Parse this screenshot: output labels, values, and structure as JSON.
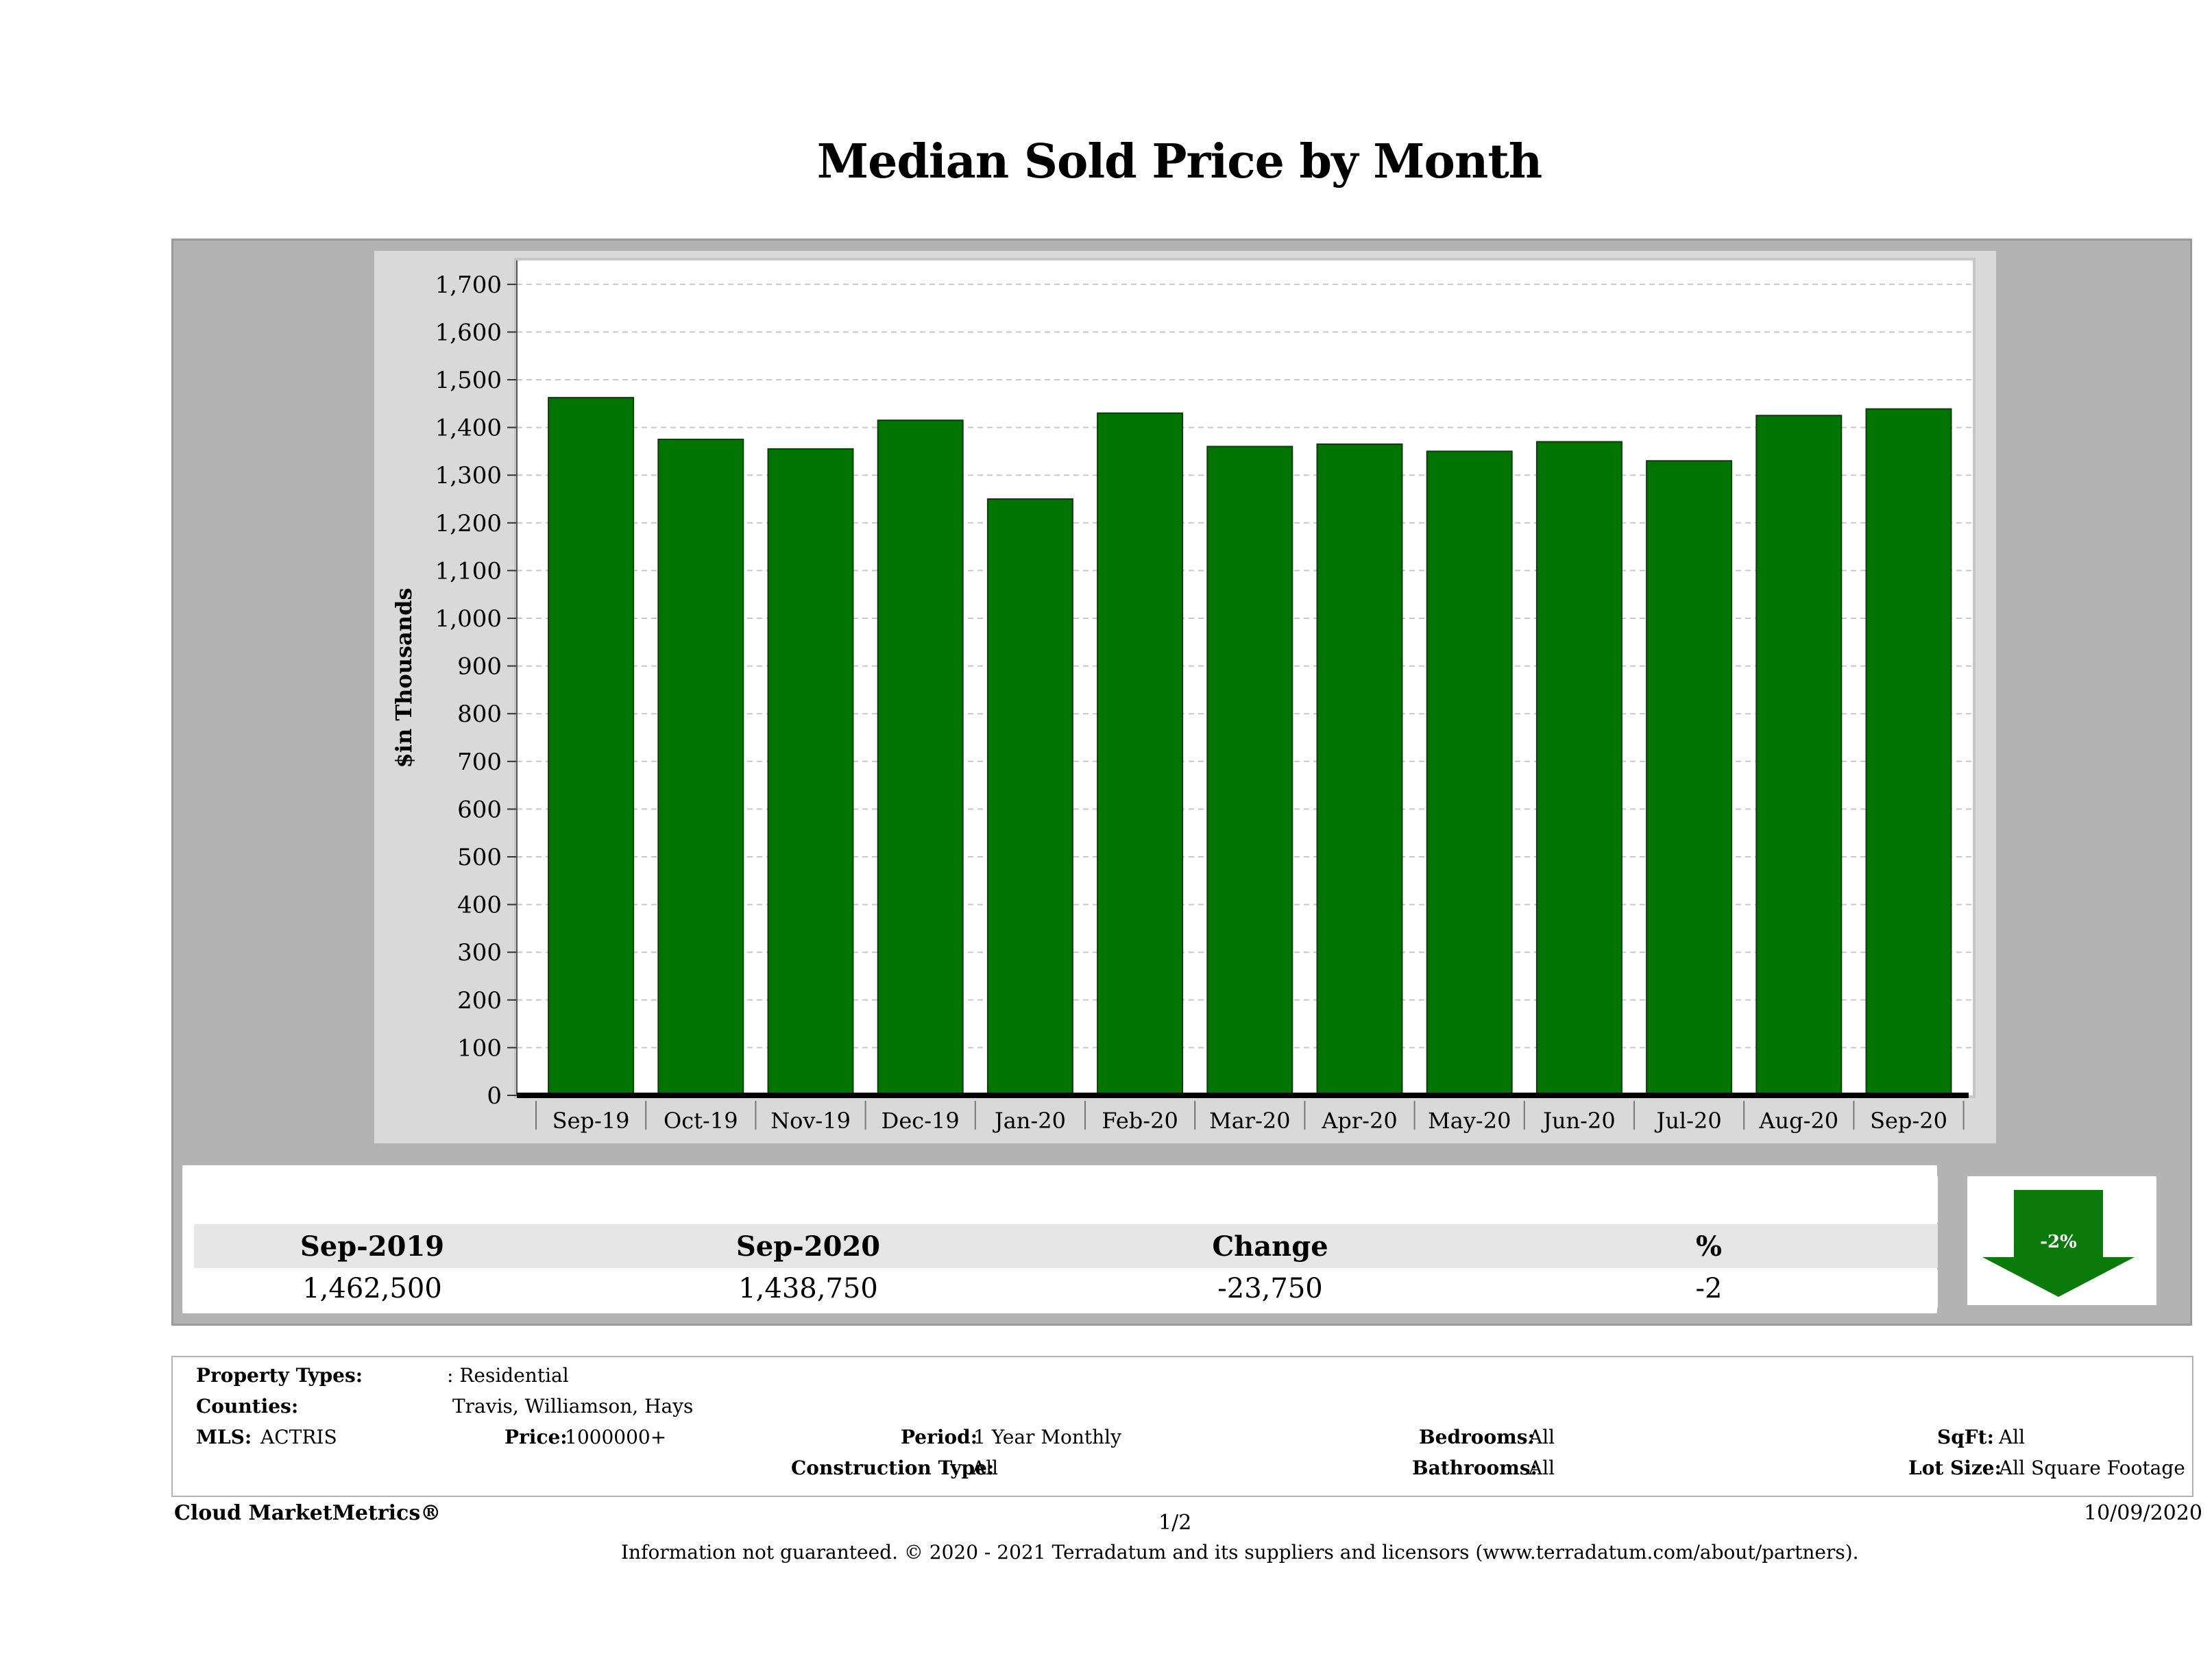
{
  "chart_data": {
    "type": "bar",
    "title": "Median Sold Price by Month",
    "ylabel": "$in Thousands",
    "xlabel": "",
    "categories": [
      "Sep-19",
      "Oct-19",
      "Nov-19",
      "Dec-19",
      "Jan-20",
      "Feb-20",
      "Mar-20",
      "Apr-20",
      "May-20",
      "Jun-20",
      "Jul-20",
      "Aug-20",
      "Sep-20"
    ],
    "values": [
      1462.5,
      1375,
      1355,
      1415,
      1250,
      1430,
      1360,
      1365,
      1350,
      1370,
      1330,
      1425,
      1438.75
    ],
    "ylim": [
      0,
      1750
    ],
    "yticks": [
      0,
      100,
      200,
      300,
      400,
      500,
      600,
      700,
      800,
      900,
      1000,
      1100,
      1200,
      1300,
      1400,
      1500,
      1600,
      1700
    ],
    "ytick_labels": [
      "0",
      "100",
      "200",
      "300",
      "400",
      "500",
      "600",
      "700",
      "800",
      "900",
      "1,000",
      "1,100",
      "1,200",
      "1,300",
      "1,400",
      "1,500",
      "1,600",
      "1,700"
    ],
    "grid": true,
    "bar_color": "#007400"
  },
  "summary": {
    "headers": [
      "Sep-2019",
      "Sep-2020",
      "Change",
      "%"
    ],
    "values": [
      "1,462,500",
      "1,438,750",
      "-23,750",
      "-2"
    ],
    "arrow_label": "-2%",
    "arrow_direction": "down",
    "arrow_color": "#0a7a0a"
  },
  "criteria": {
    "property_types_label": "Property Types:",
    "property_types_value": ": Residential",
    "counties_label": "Counties:",
    "counties_value": "Travis, Williamson, Hays",
    "mls_label": "MLS:",
    "mls_value": "ACTRIS",
    "price_label": "Price:",
    "price_value": "1000000+",
    "period_label": "Period:",
    "period_value": "1 Year Monthly",
    "construction_label": "Construction Type:",
    "construction_value": "All",
    "bedrooms_label": "Bedrooms:",
    "bedrooms_value": "All",
    "bathrooms_label": "Bathrooms:",
    "bathrooms_value": "All",
    "sqft_label": "SqFt:",
    "sqft_value": "All",
    "lotsize_label": "Lot Size:",
    "lotsize_value": "All Square Footage"
  },
  "footer": {
    "brand": "Cloud MarketMetrics®",
    "page": "1/2",
    "date": "10/09/2020",
    "disclaimer": "Information not guaranteed. © 2020 - 2021 Terradatum and its suppliers and licensors (www.terradatum.com/about/partners)."
  }
}
